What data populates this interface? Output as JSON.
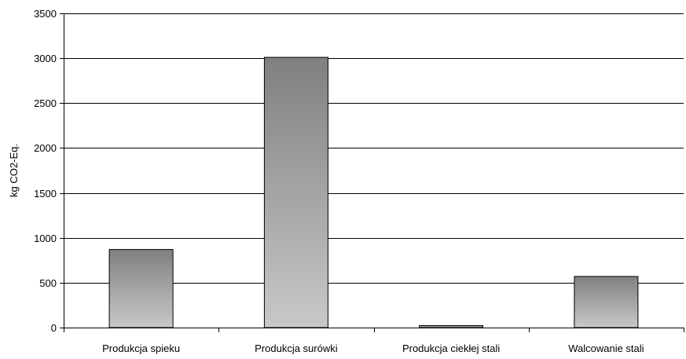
{
  "chart_data": {
    "type": "bar",
    "title": "",
    "xlabel": "",
    "ylabel": "kg CO2-Eq.",
    "categories": [
      "Produkcja spieku",
      "Produkcja surówki",
      "Produkcja ciekłej stali",
      "Walcowanie stali"
    ],
    "values": [
      870,
      3010,
      22,
      570
    ],
    "ylim": [
      0,
      3500
    ],
    "yticks": [
      0,
      500,
      1000,
      1500,
      2000,
      2500,
      3000,
      3500
    ],
    "grid": "horizontal major gridlines",
    "legend": "none",
    "colors": {
      "bar_top": "#808080",
      "bar_bottom": "#c8c8c8",
      "bar_stroke": "#000000",
      "grid": "#000000"
    }
  }
}
